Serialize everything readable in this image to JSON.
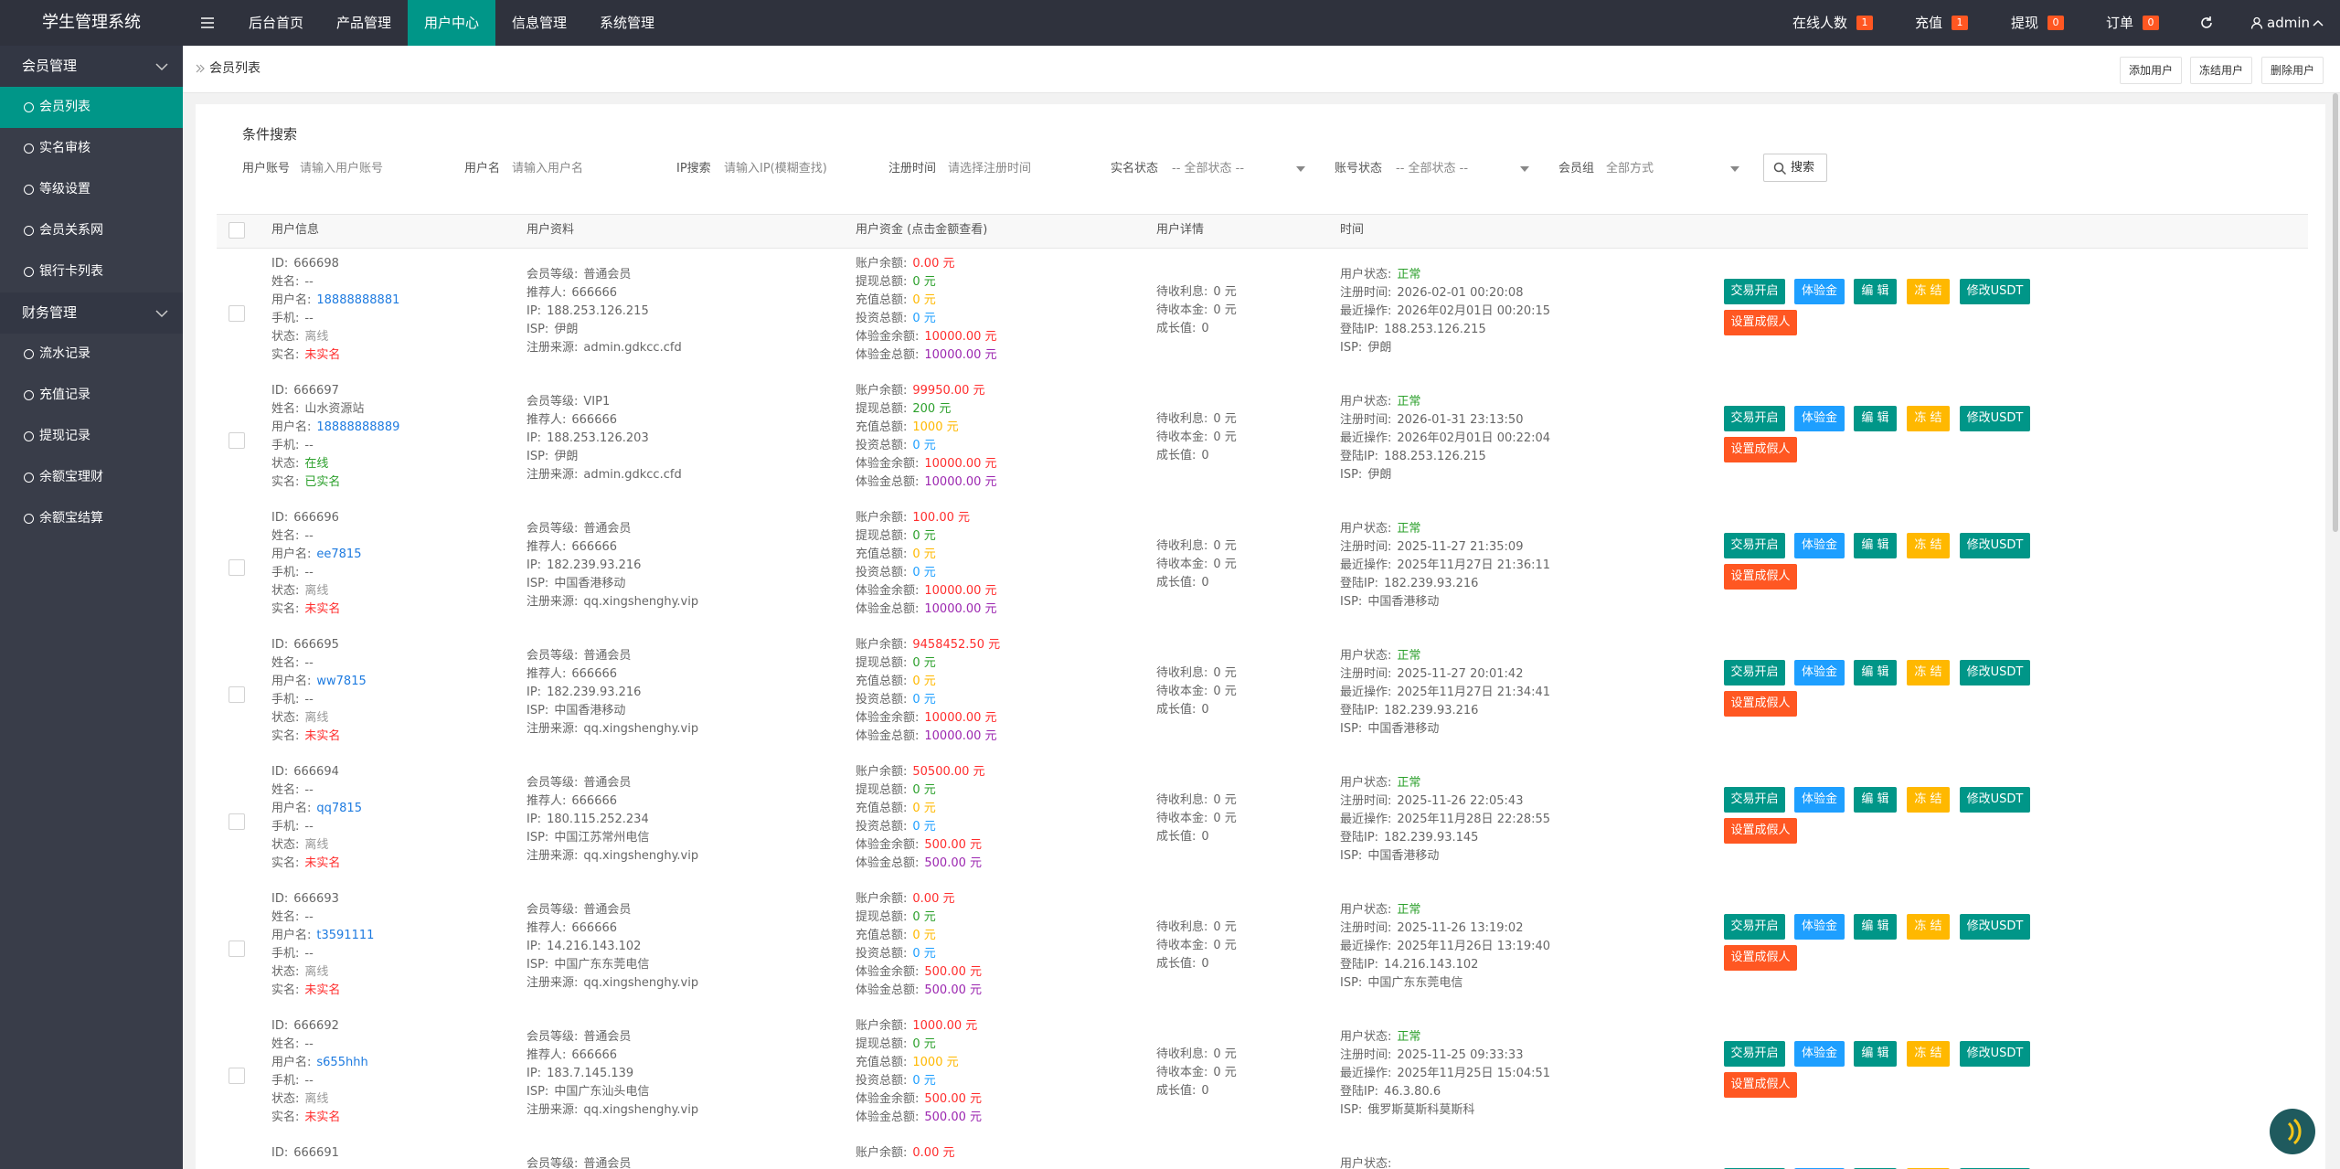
{
  "header": {
    "title": "学生管理系统",
    "nav": [
      "后台首页",
      "产品管理",
      "用户中心",
      "信息管理",
      "系统管理"
    ],
    "active_nav": 2,
    "stats": [
      {
        "label": "在线人数",
        "count": 1
      },
      {
        "label": "充值",
        "count": 1
      },
      {
        "label": "提现",
        "count": 0
      },
      {
        "label": "订单",
        "count": 0
      }
    ],
    "user": "admin"
  },
  "sidebar": [
    {
      "group": "会员管理",
      "items": [
        "会员列表",
        "实名审核",
        "等级设置",
        "会员关系网",
        "银行卡列表"
      ]
    },
    {
      "group": "财务管理",
      "items": [
        "流水记录",
        "充值记录",
        "提现记录",
        "余额宝理财",
        "余额宝结算"
      ]
    }
  ],
  "active_item": [
    0,
    0
  ],
  "breadcrumb": "会员列表",
  "toolbar_buttons": [
    "添加用户",
    "冻结用户",
    "删除用户"
  ],
  "search": {
    "title": "条件搜索",
    "fields": [
      {
        "label": "用户账号",
        "placeholder": "请输入用户账号",
        "select": false
      },
      {
        "label": "用户名",
        "placeholder": "请输入用户名",
        "select": false
      },
      {
        "label": "IP搜索",
        "placeholder": "请输入IP(模糊查找)",
        "select": false
      },
      {
        "label": "注册时间",
        "placeholder": "请选择注册时间",
        "select": false
      },
      {
        "label": "实名状态",
        "placeholder": "-- 全部状态 --",
        "select": true
      },
      {
        "label": "账号状态",
        "placeholder": "-- 全部状态 --",
        "select": true
      },
      {
        "label": "会员组",
        "placeholder": "全部方式",
        "select": true
      }
    ],
    "button": "搜索"
  },
  "table": {
    "columns": [
      "用户信息",
      "用户资料",
      "用户资金 (点击金额查看)",
      "用户详情",
      "时间"
    ],
    "labels": {
      "info": {
        "id": "ID:",
        "name": "姓名:",
        "username": "用户名:",
        "phone": "手机:",
        "online": "状态:",
        "realname": "实名:"
      },
      "profile": {
        "level": "会员等级:",
        "referrer": "推荐人:",
        "ip": "IP:",
        "isp": "ISP:",
        "source": "注册来源:"
      },
      "funds": {
        "balance": "账户余额:",
        "withdraw": "提现总额:",
        "recharge": "充值总额:",
        "invest": "投资总额:",
        "trial_balance": "体验金余额:",
        "trial_total": "体验金总额:"
      },
      "detail": {
        "interest": "待收利息:",
        "principal": "待收本金:",
        "growth": "成长值:"
      },
      "time": {
        "status": "用户状态:",
        "registered": "注册时间:",
        "last_action": "最近操作:",
        "login_ip": "登陆IP:",
        "isp": "ISP:"
      }
    },
    "actions": [
      "交易开启",
      "体验金",
      "编 辑",
      "冻 结",
      "修改USDT",
      "设置成假人"
    ],
    "rows": [
      {
        "info": {
          "id": "666698",
          "name": "--",
          "username": "18888888881",
          "phone": "--",
          "online": {
            "text": "离线",
            "color": "#999999"
          },
          "realname": {
            "text": "未实名",
            "color": "#ff2d2d"
          }
        },
        "profile": {
          "level": "普通会员",
          "referrer": "666666",
          "ip": "188.253.126.215",
          "isp": "伊朗",
          "source": "admin.gdkcc.cfd"
        },
        "funds": {
          "balance": "0.00 元",
          "withdraw": "0 元",
          "recharge": "0 元",
          "invest": "0 元",
          "trial_balance": "10000.00 元",
          "trial_total": "10000.00 元"
        },
        "detail": {
          "interest": "0 元",
          "principal": "0 元",
          "growth": "0"
        },
        "time": {
          "status": {
            "text": "正常",
            "color": "#2ca02c"
          },
          "registered": "2026-02-01 00:20:08",
          "last_action": "2026年02月01日 00:20:15",
          "login_ip": "188.253.126.215",
          "isp": "伊朗"
        }
      },
      {
        "info": {
          "id": "666697",
          "name": "山水资源站",
          "username": "18888888889",
          "phone": "--",
          "online": {
            "text": "在线",
            "color": "#2ca02c"
          },
          "realname": {
            "text": "已实名",
            "color": "#2ca02c"
          }
        },
        "profile": {
          "level": "VIP1",
          "referrer": "666666",
          "ip": "188.253.126.203",
          "isp": "伊朗",
          "source": "admin.gdkcc.cfd"
        },
        "funds": {
          "balance": "99950.00 元",
          "withdraw": "200 元",
          "recharge": "1000 元",
          "invest": "0 元",
          "trial_balance": "10000.00 元",
          "trial_total": "10000.00 元"
        },
        "detail": {
          "interest": "0 元",
          "principal": "0 元",
          "growth": "0"
        },
        "time": {
          "status": {
            "text": "正常",
            "color": "#2ca02c"
          },
          "registered": "2026-01-31 23:13:50",
          "last_action": "2026年02月01日 00:22:04",
          "login_ip": "188.253.126.215",
          "isp": "伊朗"
        }
      },
      {
        "info": {
          "id": "666696",
          "name": "--",
          "username": "ee7815",
          "phone": "--",
          "online": {
            "text": "离线",
            "color": "#999999"
          },
          "realname": {
            "text": "未实名",
            "color": "#ff2d2d"
          }
        },
        "profile": {
          "level": "普通会员",
          "referrer": "666666",
          "ip": "182.239.93.216",
          "isp": "中国香港移动",
          "source": "qq.xingshenghy.vip"
        },
        "funds": {
          "balance": "100.00 元",
          "withdraw": "0 元",
          "recharge": "0 元",
          "invest": "0 元",
          "trial_balance": "10000.00 元",
          "trial_total": "10000.00 元"
        },
        "detail": {
          "interest": "0 元",
          "principal": "0 元",
          "growth": "0"
        },
        "time": {
          "status": {
            "text": "正常",
            "color": "#2ca02c"
          },
          "registered": "2025-11-27 21:35:09",
          "last_action": "2025年11月27日 21:36:11",
          "login_ip": "182.239.93.216",
          "isp": "中国香港移动"
        }
      },
      {
        "info": {
          "id": "666695",
          "name": "--",
          "username": "ww7815",
          "phone": "--",
          "online": {
            "text": "离线",
            "color": "#999999"
          },
          "realname": {
            "text": "未实名",
            "color": "#ff2d2d"
          }
        },
        "profile": {
          "level": "普通会员",
          "referrer": "666666",
          "ip": "182.239.93.216",
          "isp": "中国香港移动",
          "source": "qq.xingshenghy.vip"
        },
        "funds": {
          "balance": "9458452.50 元",
          "withdraw": "0 元",
          "recharge": "0 元",
          "invest": "0 元",
          "trial_balance": "10000.00 元",
          "trial_total": "10000.00 元"
        },
        "detail": {
          "interest": "0 元",
          "principal": "0 元",
          "growth": "0"
        },
        "time": {
          "status": {
            "text": "正常",
            "color": "#2ca02c"
          },
          "registered": "2025-11-27 20:01:42",
          "last_action": "2025年11月27日 21:34:41",
          "login_ip": "182.239.93.216",
          "isp": "中国香港移动"
        }
      },
      {
        "info": {
          "id": "666694",
          "name": "--",
          "username": "qq7815",
          "phone": "--",
          "online": {
            "text": "离线",
            "color": "#999999"
          },
          "realname": {
            "text": "未实名",
            "color": "#ff2d2d"
          }
        },
        "profile": {
          "level": "普通会员",
          "referrer": "666666",
          "ip": "180.115.252.234",
          "isp": "中国江苏常州电信",
          "source": "qq.xingshenghy.vip"
        },
        "funds": {
          "balance": "50500.00 元",
          "withdraw": "0 元",
          "recharge": "0 元",
          "invest": "0 元",
          "trial_balance": "500.00 元",
          "trial_total": "500.00 元"
        },
        "detail": {
          "interest": "0 元",
          "principal": "0 元",
          "growth": "0"
        },
        "time": {
          "status": {
            "text": "正常",
            "color": "#2ca02c"
          },
          "registered": "2025-11-26 22:05:43",
          "last_action": "2025年11月28日 22:28:55",
          "login_ip": "182.239.93.145",
          "isp": "中国香港移动"
        }
      },
      {
        "info": {
          "id": "666693",
          "name": "--",
          "username": "t3591111",
          "phone": "--",
          "online": {
            "text": "离线",
            "color": "#999999"
          },
          "realname": {
            "text": "未实名",
            "color": "#ff2d2d"
          }
        },
        "profile": {
          "level": "普通会员",
          "referrer": "666666",
          "ip": "14.216.143.102",
          "isp": "中国广东东莞电信",
          "source": "qq.xingshenghy.vip"
        },
        "funds": {
          "balance": "0.00 元",
          "withdraw": "0 元",
          "recharge": "0 元",
          "invest": "0 元",
          "trial_balance": "500.00 元",
          "trial_total": "500.00 元"
        },
        "detail": {
          "interest": "0 元",
          "principal": "0 元",
          "growth": "0"
        },
        "time": {
          "status": {
            "text": "正常",
            "color": "#2ca02c"
          },
          "registered": "2025-11-26 13:19:02",
          "last_action": "2025年11月26日 13:19:40",
          "login_ip": "14.216.143.102",
          "isp": "中国广东东莞电信"
        }
      },
      {
        "info": {
          "id": "666692",
          "name": "--",
          "username": "s655hhh",
          "phone": "--",
          "online": {
            "text": "离线",
            "color": "#999999"
          },
          "realname": {
            "text": "未实名",
            "color": "#ff2d2d"
          }
        },
        "profile": {
          "level": "普通会员",
          "referrer": "666666",
          "ip": "183.7.145.139",
          "isp": "中国广东汕头电信",
          "source": "qq.xingshenghy.vip"
        },
        "funds": {
          "balance": "1000.00 元",
          "withdraw": "0 元",
          "recharge": "1000 元",
          "invest": "0 元",
          "trial_balance": "500.00 元",
          "trial_total": "500.00 元"
        },
        "detail": {
          "interest": "0 元",
          "principal": "0 元",
          "growth": "0"
        },
        "time": {
          "status": {
            "text": "正常",
            "color": "#2ca02c"
          },
          "registered": "2025-11-25 09:33:33",
          "last_action": "2025年11月25日 15:04:51",
          "login_ip": "46.3.80.6",
          "isp": "俄罗斯莫斯科莫斯科"
        }
      },
      {
        "info": {
          "id": "666691"
        },
        "profile": {
          "level": "普通会员"
        },
        "funds": {
          "balance": "0.00 元"
        },
        "time": {
          "status": null
        }
      }
    ]
  }
}
